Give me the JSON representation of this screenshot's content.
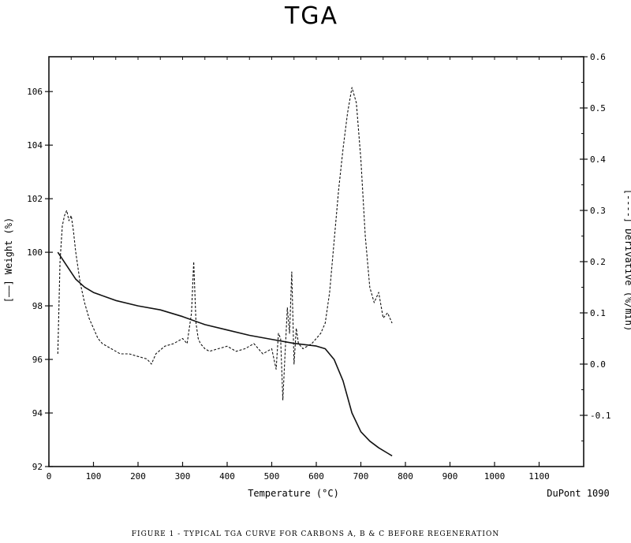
{
  "chart_data": {
    "type": "line",
    "title": "TGA",
    "xlabel": "Temperature (°C)",
    "ylabel_left": "[——] Weight (%)",
    "ylabel_right": "[----] Derivative (%/min)",
    "xlim": [
      0,
      1200
    ],
    "ylim_left": [
      92,
      107.3
    ],
    "ylim_right": [
      -0.2,
      0.6
    ],
    "x_ticks": [
      "0",
      "100",
      "200",
      "300",
      "400",
      "500",
      "600",
      "700",
      "800",
      "900",
      "1000",
      "1100"
    ],
    "y_left_ticks": [
      "92",
      "94",
      "96",
      "98",
      "100",
      "102",
      "104",
      "106"
    ],
    "y_right_ticks": [
      "-0.1",
      "0.0",
      "0.1",
      "0.2",
      "0.3",
      "0.4",
      "0.5",
      "0.6"
    ],
    "grid": false,
    "series": [
      {
        "name": "Weight",
        "axis": "left",
        "style": "solid",
        "x": [
          20,
          40,
          60,
          80,
          100,
          150,
          200,
          250,
          300,
          350,
          400,
          450,
          500,
          550,
          600,
          620,
          640,
          660,
          680,
          700,
          720,
          740,
          760,
          770
        ],
        "y": [
          100.0,
          99.5,
          99.0,
          98.7,
          98.5,
          98.2,
          98.0,
          97.85,
          97.6,
          97.3,
          97.1,
          96.9,
          96.75,
          96.6,
          96.5,
          96.4,
          96.0,
          95.2,
          94.0,
          93.3,
          92.95,
          92.7,
          92.5,
          92.4
        ]
      },
      {
        "name": "Derivative",
        "axis": "right",
        "style": "dashed",
        "x": [
          20,
          25,
          30,
          35,
          40,
          45,
          50,
          55,
          60,
          65,
          70,
          80,
          90,
          100,
          110,
          120,
          140,
          160,
          180,
          200,
          220,
          230,
          240,
          260,
          280,
          300,
          310,
          320,
          325,
          330,
          335,
          340,
          350,
          360,
          380,
          400,
          420,
          440,
          460,
          480,
          500,
          510,
          515,
          520,
          525,
          530,
          535,
          540,
          545,
          550,
          555,
          560,
          570,
          580,
          590,
          600,
          610,
          620,
          630,
          640,
          650,
          660,
          670,
          680,
          690,
          700,
          710,
          720,
          730,
          740,
          750,
          760,
          770
        ],
        "y": [
          0.02,
          0.2,
          0.27,
          0.29,
          0.3,
          0.28,
          0.29,
          0.26,
          0.22,
          0.19,
          0.16,
          0.12,
          0.09,
          0.07,
          0.05,
          0.04,
          0.03,
          0.02,
          0.02,
          0.015,
          0.01,
          0.0,
          0.02,
          0.035,
          0.04,
          0.05,
          0.04,
          0.1,
          0.2,
          0.08,
          0.05,
          0.04,
          0.03,
          0.025,
          0.03,
          0.035,
          0.025,
          0.03,
          0.04,
          0.02,
          0.03,
          -0.01,
          0.06,
          0.05,
          -0.07,
          0.02,
          0.11,
          0.06,
          0.18,
          0.0,
          0.07,
          0.04,
          0.03,
          0.035,
          0.04,
          0.05,
          0.06,
          0.08,
          0.14,
          0.24,
          0.34,
          0.42,
          0.49,
          0.54,
          0.51,
          0.4,
          0.25,
          0.15,
          0.12,
          0.14,
          0.09,
          0.1,
          0.08
        ]
      }
    ]
  },
  "labels": {
    "brand": "DuPont 1090",
    "caption": "FIGURE 1 - TYPICAL TGA CURVE FOR CARBONS A, B & C BEFORE REGENERATION"
  },
  "colors": {
    "ink": "#111111",
    "background": "#ffffff"
  }
}
